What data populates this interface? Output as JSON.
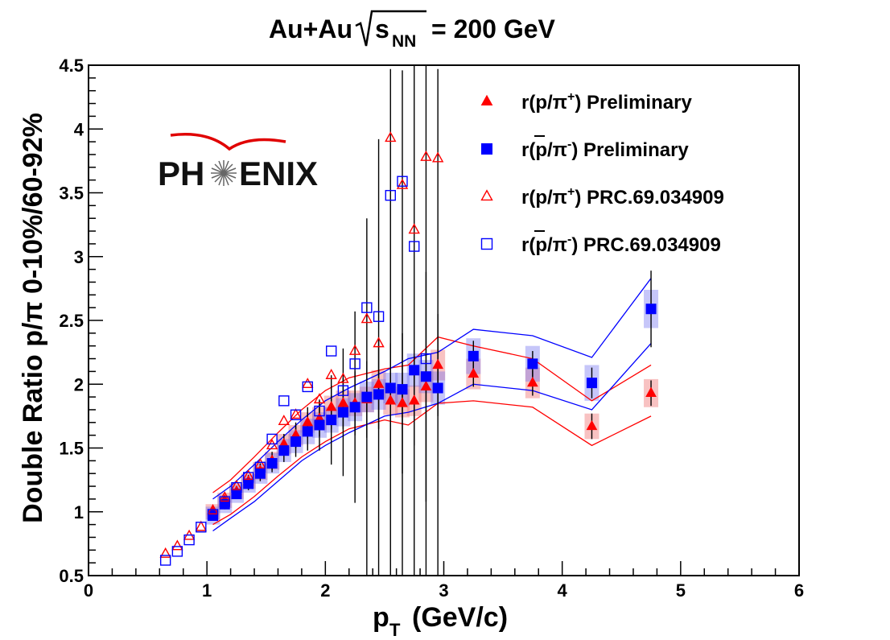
{
  "chart_data": {
    "type": "scatter",
    "title": {
      "prefix": "Au+Au",
      "sqrt_symbol": "s",
      "sqrt_sub": "NN",
      "suffix": "= 200 GeV"
    },
    "xlabel": {
      "main": "p",
      "sub": "T",
      "rest": "(GeV/c)"
    },
    "ylabel": "Double Ratio p/π 0-10%/60-92%",
    "xlim": [
      0,
      6
    ],
    "ylim": [
      0.5,
      4.5
    ],
    "x_ticks": [
      "0",
      "1",
      "2",
      "3",
      "4",
      "5",
      "6"
    ],
    "y_ticks": [
      "0.5",
      "1",
      "1.5",
      "2",
      "2.5",
      "3",
      "3.5",
      "4",
      "4.5"
    ],
    "logo": {
      "text_left": "PH",
      "text_right": "ENIX",
      "full": "PHENIX"
    },
    "legend": [
      {
        "base": "r(p/π",
        "sup": "+",
        "rest": ") Preliminary",
        "marker": "triangle-filled",
        "color": "#ff0000"
      },
      {
        "base": "r(p/π",
        "sup": "-",
        "rest": ") Preliminary",
        "marker": "square-filled",
        "color": "#0000ff",
        "pbar": true
      },
      {
        "base": "r(p/π",
        "sup": "+",
        "rest": ") PRC.69.034909",
        "marker": "triangle-open",
        "color": "#ff0000"
      },
      {
        "base": "r(p/π",
        "sup": "-",
        "rest": ") PRC.69.034909",
        "marker": "square-open",
        "color": "#0000ff",
        "pbar": true
      }
    ],
    "series": [
      {
        "name": "r(p/π+) Preliminary",
        "marker": "triangle-filled",
        "color": "#ff0000",
        "x": [
          1.05,
          1.15,
          1.25,
          1.35,
          1.45,
          1.55,
          1.65,
          1.75,
          1.85,
          1.95,
          2.05,
          2.15,
          2.25,
          2.35,
          2.45,
          2.55,
          2.65,
          2.75,
          2.85,
          2.95,
          3.25,
          3.75,
          4.25,
          4.75
        ],
        "y": [
          1.0,
          1.09,
          1.16,
          1.24,
          1.32,
          1.4,
          1.53,
          1.6,
          1.7,
          1.73,
          1.82,
          1.85,
          1.85,
          1.88,
          2.0,
          1.87,
          1.85,
          1.87,
          1.98,
          2.15,
          2.08,
          2.01,
          1.67,
          1.93
        ],
        "err": [
          0.03,
          0.04,
          0.04,
          0.05,
          0.06,
          0.07,
          0.08,
          0.1,
          0.12,
          0.14,
          0.17,
          0.2,
          0.25,
          0.3,
          0.35,
          0.45,
          0.55,
          0.35,
          0.9,
          0.4,
          0.1,
          0.1,
          0.1,
          0.1
        ],
        "sys": [
          0.06,
          0.06,
          0.06,
          0.06,
          0.07,
          0.07,
          0.08,
          0.08,
          0.08,
          0.09,
          0.09,
          0.1,
          0.1,
          0.1,
          0.11,
          0.11,
          0.11,
          0.12,
          0.12,
          0.12,
          0.12,
          0.12,
          0.1,
          0.11
        ]
      },
      {
        "name": "r(p̄/π-) Preliminary",
        "marker": "square-filled",
        "color": "#0000ff",
        "x": [
          1.05,
          1.15,
          1.25,
          1.35,
          1.45,
          1.55,
          1.65,
          1.75,
          1.85,
          1.95,
          2.05,
          2.15,
          2.25,
          2.35,
          2.45,
          2.55,
          2.65,
          2.75,
          2.85,
          2.95,
          3.25,
          3.75,
          4.25,
          4.75
        ],
        "y": [
          0.97,
          1.06,
          1.14,
          1.22,
          1.3,
          1.38,
          1.48,
          1.55,
          1.63,
          1.68,
          1.72,
          1.78,
          1.82,
          1.9,
          1.92,
          1.97,
          1.96,
          2.11,
          2.06,
          1.97,
          2.22,
          2.16,
          2.01,
          2.59
        ],
        "err": [
          0.03,
          0.04,
          0.04,
          0.05,
          0.06,
          0.07,
          0.09,
          0.12,
          0.15,
          0.2,
          0.35,
          0.5,
          0.75,
          1.4,
          2.0,
          2.5,
          2.5,
          2.5,
          2.5,
          2.5,
          0.12,
          0.1,
          0.12,
          0.3
        ],
        "sys": [
          0.07,
          0.07,
          0.07,
          0.07,
          0.08,
          0.08,
          0.09,
          0.09,
          0.1,
          0.1,
          0.1,
          0.11,
          0.11,
          0.12,
          0.12,
          0.12,
          0.13,
          0.13,
          0.13,
          0.13,
          0.14,
          0.14,
          0.14,
          0.15
        ]
      },
      {
        "name": "r(p/π+) PRC.69.034909",
        "marker": "triangle-open",
        "color": "#ff0000",
        "x": [
          0.65,
          0.75,
          0.85,
          0.95,
          1.05,
          1.15,
          1.25,
          1.35,
          1.45,
          1.55,
          1.65,
          1.75,
          1.85,
          1.95,
          2.05,
          2.15,
          2.25,
          2.35,
          2.45,
          2.55,
          2.65,
          2.75,
          2.85,
          2.95
        ],
        "y": [
          0.67,
          0.73,
          0.81,
          0.88,
          1.01,
          1.11,
          1.2,
          1.28,
          1.37,
          1.52,
          1.71,
          1.76,
          2.0,
          1.88,
          2.07,
          2.04,
          2.26,
          2.51,
          2.32,
          3.93,
          3.56,
          3.21,
          3.78,
          3.77
        ]
      },
      {
        "name": "r(p̄/π-) PRC.69.034909",
        "marker": "square-open",
        "color": "#0000ff",
        "x": [
          0.65,
          0.75,
          0.85,
          0.95,
          1.05,
          1.15,
          1.25,
          1.35,
          1.45,
          1.55,
          1.65,
          1.75,
          1.85,
          1.95,
          2.05,
          2.15,
          2.25,
          2.35,
          2.45,
          2.55,
          2.65,
          2.75,
          2.85
        ],
        "y": [
          0.62,
          0.69,
          0.78,
          0.88,
          0.98,
          1.08,
          1.19,
          1.27,
          1.35,
          1.57,
          1.87,
          1.76,
          1.98,
          1.79,
          2.26,
          1.95,
          2.16,
          2.6,
          2.53,
          3.48,
          3.59,
          3.08,
          2.2
        ]
      }
    ],
    "bands": [
      {
        "name": "p/π+ band upper",
        "color": "#ff0000",
        "x": [
          1.05,
          1.2,
          1.4,
          1.6,
          1.8,
          2.0,
          2.2,
          2.5,
          2.7,
          2.95,
          3.25,
          3.75,
          4.25,
          4.75
        ],
        "y": [
          1.15,
          1.25,
          1.43,
          1.62,
          1.8,
          1.95,
          2.05,
          2.12,
          2.15,
          2.37,
          2.3,
          2.2,
          1.87,
          2.15
        ]
      },
      {
        "name": "p/π+ band lower",
        "color": "#ff0000",
        "x": [
          1.05,
          1.2,
          1.4,
          1.6,
          1.8,
          2.0,
          2.2,
          2.5,
          2.7,
          2.95,
          3.25,
          3.75,
          4.25,
          4.75
        ],
        "y": [
          0.9,
          0.98,
          1.12,
          1.28,
          1.43,
          1.55,
          1.65,
          1.72,
          1.68,
          1.85,
          1.87,
          1.82,
          1.52,
          1.75
        ]
      },
      {
        "name": "p̄/π- band upper",
        "color": "#0000ff",
        "x": [
          1.05,
          1.2,
          1.4,
          1.6,
          1.8,
          2.0,
          2.2,
          2.5,
          2.7,
          2.95,
          3.25,
          3.75,
          4.25,
          4.75
        ],
        "y": [
          1.1,
          1.2,
          1.37,
          1.55,
          1.72,
          1.87,
          1.97,
          2.1,
          2.2,
          2.25,
          2.43,
          2.38,
          2.21,
          2.83
        ]
      },
      {
        "name": "p̄/π- band lower",
        "color": "#0000ff",
        "x": [
          1.05,
          1.2,
          1.4,
          1.6,
          1.8,
          2.0,
          2.2,
          2.5,
          2.7,
          2.95,
          3.25,
          3.75,
          4.25,
          4.75
        ],
        "y": [
          0.85,
          0.95,
          1.08,
          1.24,
          1.4,
          1.52,
          1.62,
          1.75,
          1.78,
          1.85,
          2.0,
          1.95,
          1.8,
          2.32
        ]
      }
    ]
  }
}
